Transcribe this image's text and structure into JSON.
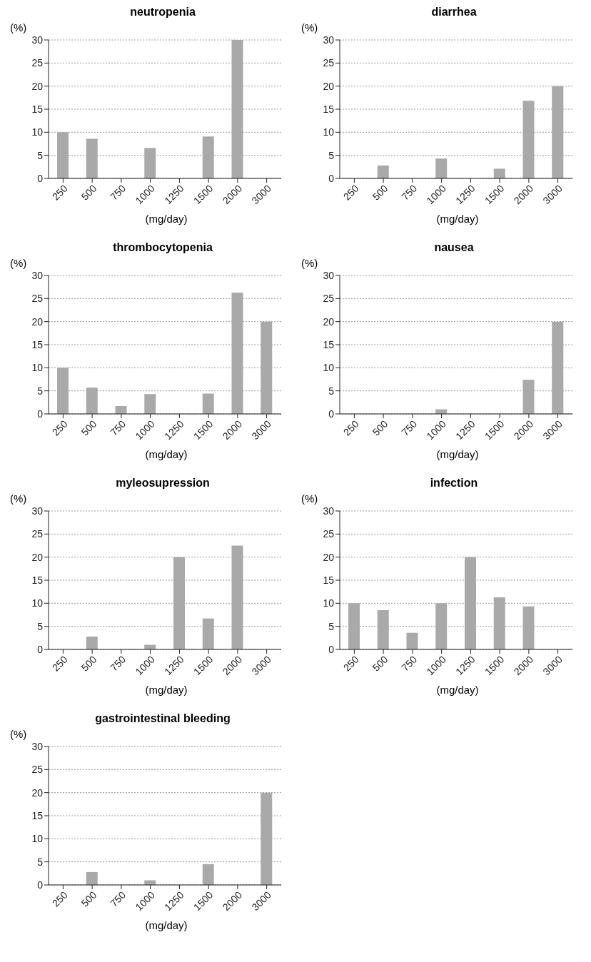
{
  "chart_data": [
    {
      "type": "bar",
      "title": "neutropenia",
      "ylabel": "(%)",
      "xlabel": "(mg/day)",
      "categories": [
        "250",
        "500",
        "750",
        "1000",
        "1250",
        "1500",
        "2000",
        "3000"
      ],
      "values": [
        10,
        8.6,
        0,
        6.6,
        0,
        9.1,
        30,
        0
      ],
      "color": "#a9a9a9",
      "ylim": [
        0,
        30
      ],
      "yticks": [
        0,
        5,
        10,
        15,
        20,
        25,
        30
      ],
      "grid": "y"
    },
    {
      "type": "bar",
      "title": "diarrhea",
      "ylabel": "(%)",
      "xlabel": "(mg/day)",
      "categories": [
        "250",
        "500",
        "750",
        "1000",
        "1250",
        "1500",
        "2000",
        "3000"
      ],
      "values": [
        0,
        2.8,
        0,
        4.3,
        0,
        2.1,
        16.8,
        20
      ],
      "color": "#a9a9a9",
      "ylim": [
        0,
        30
      ],
      "yticks": [
        0,
        5,
        10,
        15,
        20,
        25,
        30
      ],
      "grid": "y"
    },
    {
      "type": "bar",
      "title": "thrombocytopenia",
      "ylabel": "(%)",
      "xlabel": "(mg/day)",
      "categories": [
        "250",
        "500",
        "750",
        "1000",
        "1250",
        "1500",
        "2000",
        "3000"
      ],
      "values": [
        10,
        5.7,
        1.7,
        4.3,
        0,
        4.4,
        26.3,
        20
      ],
      "color": "#a9a9a9",
      "ylim": [
        0,
        30
      ],
      "yticks": [
        0,
        5,
        10,
        15,
        20,
        25,
        30
      ],
      "grid": "y"
    },
    {
      "type": "bar",
      "title": "nausea",
      "ylabel": "(%)",
      "xlabel": "(mg/day)",
      "categories": [
        "250",
        "500",
        "750",
        "1000",
        "1250",
        "1500",
        "2000",
        "3000"
      ],
      "values": [
        0,
        0,
        0,
        1,
        0,
        0,
        7.4,
        20
      ],
      "color": "#a9a9a9",
      "ylim": [
        0,
        30
      ],
      "yticks": [
        0,
        5,
        10,
        15,
        20,
        25,
        30
      ],
      "grid": "y"
    },
    {
      "type": "bar",
      "title": "myleosupression",
      "ylabel": "(%)",
      "xlabel": "(mg/day)",
      "categories": [
        "250",
        "500",
        "750",
        "1000",
        "1250",
        "1500",
        "2000",
        "3000"
      ],
      "values": [
        0,
        2.8,
        0,
        1,
        20,
        6.7,
        22.5,
        0
      ],
      "color": "#a9a9a9",
      "ylim": [
        0,
        30
      ],
      "yticks": [
        0,
        5,
        10,
        15,
        20,
        25,
        30
      ],
      "grid": "y"
    },
    {
      "type": "bar",
      "title": "infection",
      "ylabel": "(%)",
      "xlabel": "(mg/day)",
      "categories": [
        "250",
        "500",
        "750",
        "1000",
        "1250",
        "1500",
        "2000",
        "3000"
      ],
      "values": [
        10,
        8.5,
        3.6,
        10,
        20,
        11.3,
        9.3,
        0
      ],
      "color": "#a9a9a9",
      "ylim": [
        0,
        30
      ],
      "yticks": [
        0,
        5,
        10,
        15,
        20,
        25,
        30
      ],
      "grid": "y"
    },
    {
      "type": "bar",
      "title": "gastrointestinal bleeding",
      "ylabel": "(%)",
      "xlabel": "(mg/day)",
      "categories": [
        "250",
        "500",
        "750",
        "1000",
        "1250",
        "1500",
        "2000",
        "3000"
      ],
      "values": [
        0,
        2.8,
        0,
        1,
        0,
        4.5,
        0,
        20
      ],
      "color": "#a9a9a9",
      "ylim": [
        0,
        30
      ],
      "yticks": [
        0,
        5,
        10,
        15,
        20,
        25,
        30
      ],
      "grid": "y"
    }
  ]
}
